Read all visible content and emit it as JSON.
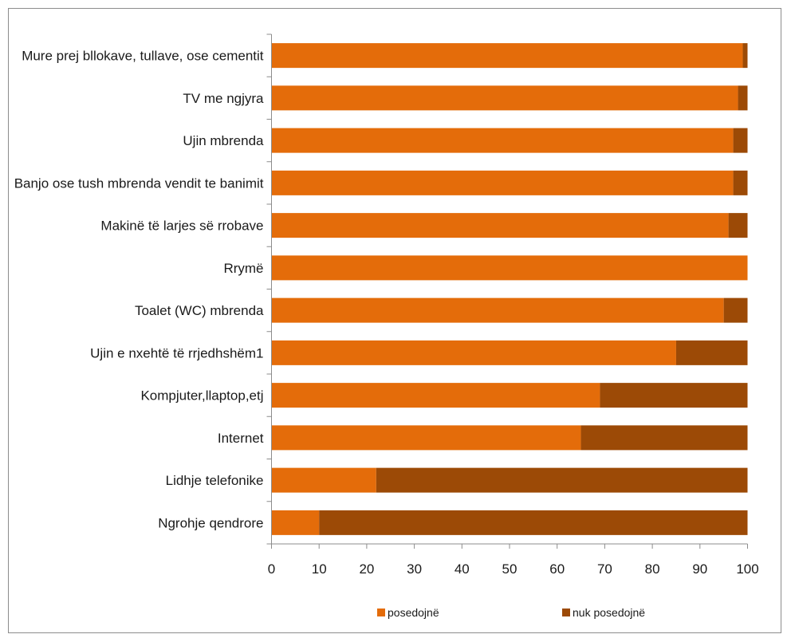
{
  "chart_data": {
    "type": "bar",
    "orientation": "horizontal",
    "stacked": true,
    "categories": [
      "Mure prej bllokave, tullave, ose cementit",
      "TV me ngjyra",
      "Ujin mbrenda",
      "Banjo ose tush mbrenda vendit te banimit",
      "Makinë të larjes së rrobave",
      "Rrymë",
      "Toalet (WC) mbrenda",
      "Ujin e nxehtë të rrjedhshëm1",
      "Kompjuter,llaptop,etj",
      "Internet",
      "Lidhje telefonike",
      "Ngrohje qendrore"
    ],
    "series": [
      {
        "name": "posedojnë",
        "color": "#E46C0A",
        "values": [
          99,
          98,
          97,
          97,
          96,
          100,
          95,
          85,
          69,
          65,
          22,
          10
        ]
      },
      {
        "name": "nuk posedojnë",
        "color": "#9C4A06",
        "values": [
          1,
          2,
          3,
          3,
          4,
          0,
          5,
          15,
          31,
          35,
          78,
          90
        ]
      }
    ],
    "xlim": [
      0,
      100
    ],
    "xticks": [
      0,
      10,
      20,
      30,
      40,
      50,
      60,
      70,
      80,
      90,
      100
    ],
    "grid": false,
    "legend_position": "bottom"
  }
}
